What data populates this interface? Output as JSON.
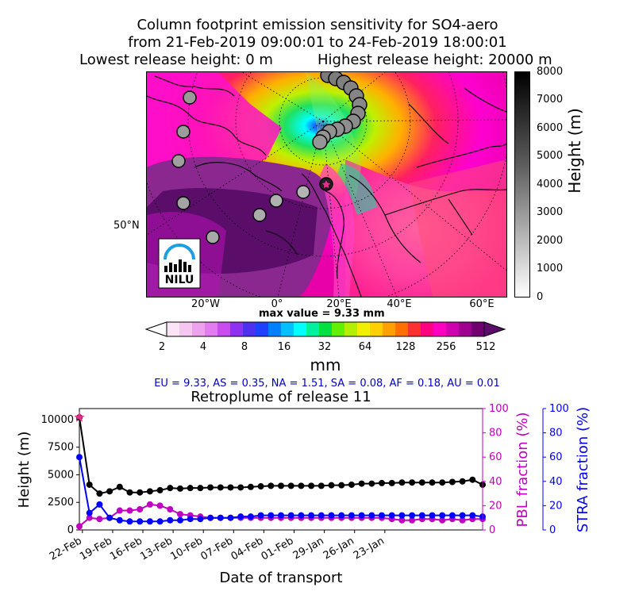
{
  "header": {
    "title_line1": "Column footprint emission sensitivity for SO4-aero",
    "title_line2": "from 21-Feb-2019 09:00:01 to 24-Feb-2019 18:00:01",
    "lowest_release": "Lowest release height: 0 m",
    "highest_release": "Highest release height: 20000 m"
  },
  "map": {
    "lat_label": "50°N",
    "lon_labels": [
      "20°W",
      "0°",
      "20°E",
      "40°E",
      "60°E"
    ],
    "logo_text": "NILU",
    "max_value_text": "max value = 9.33 mm"
  },
  "height_colorbar": {
    "label": "Height (m)",
    "ticks": [
      "0",
      "1000",
      "2000",
      "3000",
      "4000",
      "5000",
      "6000",
      "7000",
      "8000"
    ]
  },
  "sensitivity_colorbar": {
    "unit": "mm",
    "ticks": [
      "2",
      "4",
      "8",
      "16",
      "32",
      "64",
      "128",
      "256",
      "512"
    ]
  },
  "region_stats": "EU = 9.33,  AS = 0.35,  NA = 1.51,  SA = 0.08,  AF = 0.18,  AU = 0.01",
  "colors": {
    "height_line": "#000000",
    "pbl_line": "#c000c0",
    "stra_line": "#0000ff",
    "release_marker": "#e0308a",
    "region_text": "#0000cc"
  },
  "chart_data": {
    "type": "line",
    "title": "Retroplume of release 11",
    "xlabel": "Date of transport",
    "x_tick_labels": [
      "22-Feb",
      "19-Feb",
      "16-Feb",
      "13-Feb",
      "10-Feb",
      "07-Feb",
      "04-Feb",
      "01-Feb",
      "29-Jan",
      "26-Jan",
      "23-Jan"
    ],
    "x": [
      0,
      1,
      2,
      3,
      4,
      5,
      6,
      7,
      8,
      9,
      10,
      11,
      12,
      13,
      14,
      15,
      16,
      17,
      18,
      19,
      20,
      21,
      22,
      23,
      24,
      25,
      26,
      27,
      28,
      29,
      30,
      31,
      32,
      33,
      34,
      35,
      36,
      37,
      38,
      39,
      40
    ],
    "xlim": [
      0,
      40
    ],
    "series": [
      {
        "name": "Height (m)",
        "axis": "left",
        "ylim": [
          0,
          11000
        ],
        "y_tick_labels": [
          "0",
          "2500",
          "5000",
          "7500",
          "10000"
        ],
        "y_ticks": [
          0,
          2500,
          5000,
          7500,
          10000
        ],
        "values": [
          10200,
          4100,
          3300,
          3500,
          3900,
          3400,
          3400,
          3500,
          3600,
          3800,
          3750,
          3800,
          3800,
          3850,
          3850,
          3850,
          3850,
          3900,
          3950,
          4000,
          4000,
          4000,
          4000,
          4000,
          4000,
          4050,
          4050,
          4100,
          4200,
          4200,
          4250,
          4250,
          4300,
          4300,
          4300,
          4300,
          4300,
          4350,
          4400,
          4550,
          4100
        ]
      },
      {
        "name": "PBL fraction (%)",
        "axis": "right1",
        "ylim": [
          0,
          100
        ],
        "y_tick_labels": [
          "0",
          "20",
          "40",
          "60",
          "80",
          "100"
        ],
        "y_ticks": [
          0,
          20,
          40,
          60,
          80,
          100
        ],
        "values": [
          3,
          10,
          9,
          10,
          16,
          16,
          17,
          21,
          20,
          17,
          13,
          12,
          11,
          10,
          10,
          10,
          10,
          10,
          10,
          10,
          10,
          10,
          10,
          10,
          10,
          10,
          10,
          10,
          10,
          10,
          10,
          9,
          8,
          8,
          9,
          9,
          8,
          9,
          8,
          9,
          9
        ]
      },
      {
        "name": "STRA fraction (%)",
        "axis": "right2",
        "ylim": [
          0,
          100
        ],
        "y_tick_labels": [
          "0",
          "20",
          "40",
          "60",
          "80",
          "100"
        ],
        "y_ticks": [
          0,
          20,
          40,
          60,
          80,
          100
        ],
        "values": [
          60,
          14,
          21,
          10,
          8,
          7,
          7,
          7,
          7,
          8,
          8,
          9,
          9,
          10,
          10,
          10,
          11,
          11,
          12,
          12,
          12,
          12,
          12,
          12,
          12,
          12,
          12,
          12,
          12,
          12,
          12,
          12,
          12,
          12,
          12,
          12,
          12,
          12,
          12,
          12,
          11
        ]
      }
    ]
  }
}
